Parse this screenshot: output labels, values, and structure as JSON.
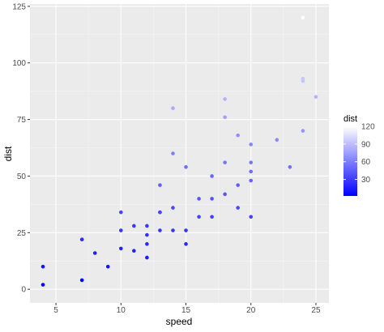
{
  "chart_data": {
    "type": "scatter",
    "title": "",
    "xlabel": "speed",
    "ylabel": "dist",
    "xlim": [
      3.0,
      26.0
    ],
    "ylim": [
      -6.0,
      126.0
    ],
    "x_ticks": [
      5,
      10,
      15,
      20,
      25
    ],
    "y_ticks": [
      0,
      25,
      50,
      75,
      100,
      125
    ],
    "grid": true,
    "legend": {
      "title": "dist",
      "position": "right",
      "type": "colorbar",
      "min": 2,
      "max": 120,
      "ticks": [
        30,
        60,
        90,
        120
      ],
      "low_color": "#0000ff",
      "high_color": "#ffffff"
    },
    "points": [
      {
        "x": 4,
        "y": 2
      },
      {
        "x": 4,
        "y": 10
      },
      {
        "x": 7,
        "y": 4
      },
      {
        "x": 7,
        "y": 22
      },
      {
        "x": 8,
        "y": 16
      },
      {
        "x": 9,
        "y": 10
      },
      {
        "x": 10,
        "y": 18
      },
      {
        "x": 10,
        "y": 26
      },
      {
        "x": 10,
        "y": 34
      },
      {
        "x": 11,
        "y": 17
      },
      {
        "x": 11,
        "y": 28
      },
      {
        "x": 12,
        "y": 14
      },
      {
        "x": 12,
        "y": 20
      },
      {
        "x": 12,
        "y": 24
      },
      {
        "x": 12,
        "y": 28
      },
      {
        "x": 13,
        "y": 26
      },
      {
        "x": 13,
        "y": 34
      },
      {
        "x": 13,
        "y": 34
      },
      {
        "x": 13,
        "y": 46
      },
      {
        "x": 14,
        "y": 26
      },
      {
        "x": 14,
        "y": 36
      },
      {
        "x": 14,
        "y": 60
      },
      {
        "x": 14,
        "y": 80
      },
      {
        "x": 15,
        "y": 20
      },
      {
        "x": 15,
        "y": 26
      },
      {
        "x": 15,
        "y": 54
      },
      {
        "x": 16,
        "y": 32
      },
      {
        "x": 16,
        "y": 40
      },
      {
        "x": 17,
        "y": 32
      },
      {
        "x": 17,
        "y": 40
      },
      {
        "x": 17,
        "y": 50
      },
      {
        "x": 18,
        "y": 42
      },
      {
        "x": 18,
        "y": 56
      },
      {
        "x": 18,
        "y": 76
      },
      {
        "x": 18,
        "y": 84
      },
      {
        "x": 19,
        "y": 36
      },
      {
        "x": 19,
        "y": 46
      },
      {
        "x": 19,
        "y": 68
      },
      {
        "x": 20,
        "y": 32
      },
      {
        "x": 20,
        "y": 48
      },
      {
        "x": 20,
        "y": 52
      },
      {
        "x": 20,
        "y": 56
      },
      {
        "x": 20,
        "y": 64
      },
      {
        "x": 22,
        "y": 66
      },
      {
        "x": 23,
        "y": 54
      },
      {
        "x": 24,
        "y": 70
      },
      {
        "x": 24,
        "y": 92
      },
      {
        "x": 24,
        "y": 93
      },
      {
        "x": 24,
        "y": 120
      },
      {
        "x": 25,
        "y": 85
      }
    ]
  }
}
